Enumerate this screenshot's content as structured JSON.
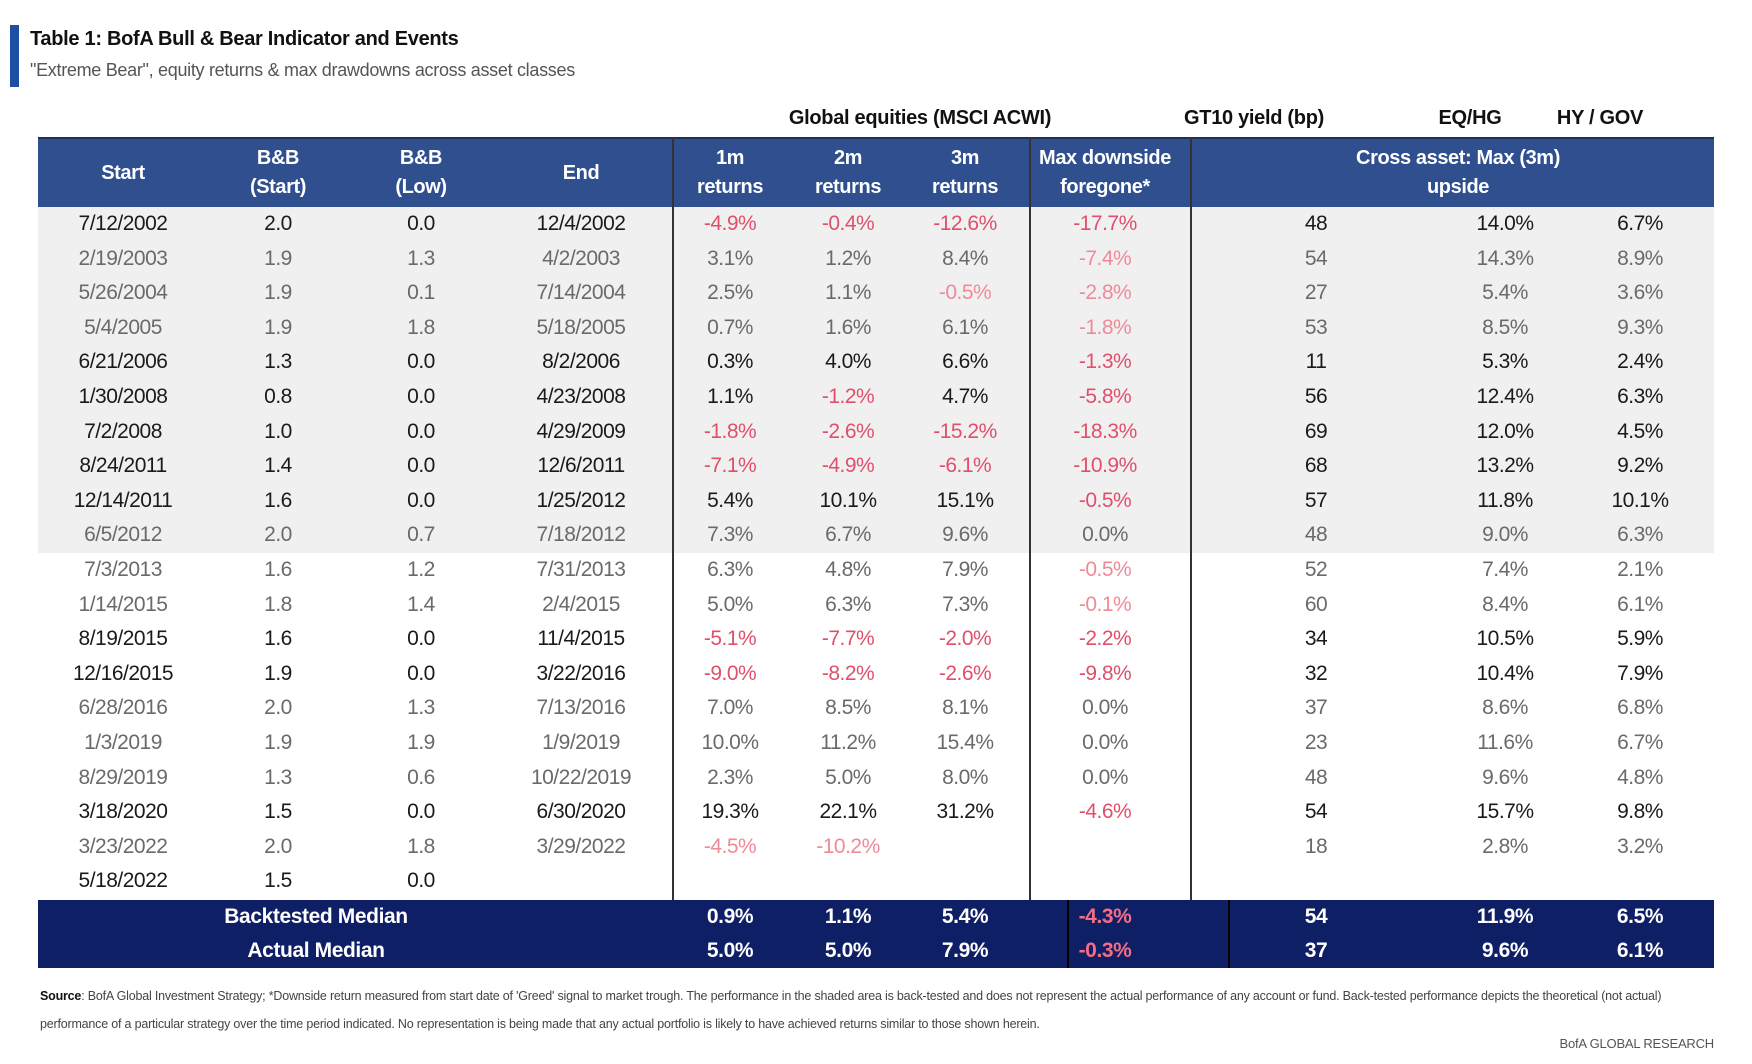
{
  "title": "Table 1: BofA Bull & Bear Indicator and Events",
  "subtitle": "\"Extreme Bear\", equity returns & max drawdowns across asset classes",
  "group_labels": {
    "global_equities": "Global equities (MSCI ACWI)",
    "gt10": "GT10 yield (bp)",
    "eqhg": "EQ/HG",
    "hygov": "HY / GOV"
  },
  "columns": {
    "start": "Start",
    "bb_start": "B&B\n(Start)",
    "bb_low": "B&B\n(Low)",
    "end": "End",
    "r1m": "1m\nreturns",
    "r2m": "2m\nreturns",
    "r3m": "3m\nreturns",
    "maxdown": "Max downside\nforegone*",
    "cross": "Cross asset: Max (3m) upside"
  },
  "colors": {
    "header_bg": "#2f4f8f",
    "footer_bg": "#0f1f66",
    "negative": "#e0506a",
    "shaded_area": "#f0f0f0",
    "accent": "#1d4fa3"
  },
  "rows": [
    {
      "start": "7/12/2002",
      "bb_start": "2.0",
      "bb_low": "0.0",
      "end": "12/4/2002",
      "r1m": "-4.9%",
      "r2m": "-0.4%",
      "r3m": "-12.6%",
      "maxdown": "-17.7%",
      "gt10": "48",
      "eqhg": "14.0%",
      "hygov": "6.7%",
      "style": "bold"
    },
    {
      "start": "2/19/2003",
      "bb_start": "1.9",
      "bb_low": "1.3",
      "end": "4/2/2003",
      "r1m": "3.1%",
      "r2m": "1.2%",
      "r3m": "8.4%",
      "maxdown": "-7.4%",
      "gt10": "54",
      "eqhg": "14.3%",
      "hygov": "8.9%",
      "style": "light"
    },
    {
      "start": "5/26/2004",
      "bb_start": "1.9",
      "bb_low": "0.1",
      "end": "7/14/2004",
      "r1m": "2.5%",
      "r2m": "1.1%",
      "r3m": "-0.5%",
      "maxdown": "-2.8%",
      "gt10": "27",
      "eqhg": "5.4%",
      "hygov": "3.6%",
      "style": "light"
    },
    {
      "start": "5/4/2005",
      "bb_start": "1.9",
      "bb_low": "1.8",
      "end": "5/18/2005",
      "r1m": "0.7%",
      "r2m": "1.6%",
      "r3m": "6.1%",
      "maxdown": "-1.8%",
      "gt10": "53",
      "eqhg": "8.5%",
      "hygov": "9.3%",
      "style": "light"
    },
    {
      "start": "6/21/2006",
      "bb_start": "1.3",
      "bb_low": "0.0",
      "end": "8/2/2006",
      "r1m": "0.3%",
      "r2m": "4.0%",
      "r3m": "6.6%",
      "maxdown": "-1.3%",
      "gt10": "11",
      "eqhg": "5.3%",
      "hygov": "2.4%",
      "style": "bold"
    },
    {
      "start": "1/30/2008",
      "bb_start": "0.8",
      "bb_low": "0.0",
      "end": "4/23/2008",
      "r1m": "1.1%",
      "r2m": "-1.2%",
      "r3m": "4.7%",
      "maxdown": "-5.8%",
      "gt10": "56",
      "eqhg": "12.4%",
      "hygov": "6.3%",
      "style": "bold"
    },
    {
      "start": "7/2/2008",
      "bb_start": "1.0",
      "bb_low": "0.0",
      "end": "4/29/2009",
      "r1m": "-1.8%",
      "r2m": "-2.6%",
      "r3m": "-15.2%",
      "maxdown": "-18.3%",
      "gt10": "69",
      "eqhg": "12.0%",
      "hygov": "4.5%",
      "style": "bold"
    },
    {
      "start": "8/24/2011",
      "bb_start": "1.4",
      "bb_low": "0.0",
      "end": "12/6/2011",
      "r1m": "-7.1%",
      "r2m": "-4.9%",
      "r3m": "-6.1%",
      "maxdown": "-10.9%",
      "gt10": "68",
      "eqhg": "13.2%",
      "hygov": "9.2%",
      "style": "bold"
    },
    {
      "start": "12/14/2011",
      "bb_start": "1.6",
      "bb_low": "0.0",
      "end": "1/25/2012",
      "r1m": "5.4%",
      "r2m": "10.1%",
      "r3m": "15.1%",
      "maxdown": "-0.5%",
      "gt10": "57",
      "eqhg": "11.8%",
      "hygov": "10.1%",
      "style": "bold"
    },
    {
      "start": "6/5/2012",
      "bb_start": "2.0",
      "bb_low": "0.7",
      "end": "7/18/2012",
      "r1m": "7.3%",
      "r2m": "6.7%",
      "r3m": "9.6%",
      "maxdown": "0.0%",
      "gt10": "48",
      "eqhg": "9.0%",
      "hygov": "6.3%",
      "style": "light"
    },
    {
      "start": "7/3/2013",
      "bb_start": "1.6",
      "bb_low": "1.2",
      "end": "7/31/2013",
      "r1m": "6.3%",
      "r2m": "4.8%",
      "r3m": "7.9%",
      "maxdown": "-0.5%",
      "gt10": "52",
      "eqhg": "7.4%",
      "hygov": "2.1%",
      "style": "light"
    },
    {
      "start": "1/14/2015",
      "bb_start": "1.8",
      "bb_low": "1.4",
      "end": "2/4/2015",
      "r1m": "5.0%",
      "r2m": "6.3%",
      "r3m": "7.3%",
      "maxdown": "-0.1%",
      "gt10": "60",
      "eqhg": "8.4%",
      "hygov": "6.1%",
      "style": "light"
    },
    {
      "start": "8/19/2015",
      "bb_start": "1.6",
      "bb_low": "0.0",
      "end": "11/4/2015",
      "r1m": "-5.1%",
      "r2m": "-7.7%",
      "r3m": "-2.0%",
      "maxdown": "-2.2%",
      "gt10": "34",
      "eqhg": "10.5%",
      "hygov": "5.9%",
      "style": "bold"
    },
    {
      "start": "12/16/2015",
      "bb_start": "1.9",
      "bb_low": "0.0",
      "end": "3/22/2016",
      "r1m": "-9.0%",
      "r2m": "-8.2%",
      "r3m": "-2.6%",
      "maxdown": "-9.8%",
      "gt10": "32",
      "eqhg": "10.4%",
      "hygov": "7.9%",
      "style": "bold"
    },
    {
      "start": "6/28/2016",
      "bb_start": "2.0",
      "bb_low": "1.3",
      "end": "7/13/2016",
      "r1m": "7.0%",
      "r2m": "8.5%",
      "r3m": "8.1%",
      "maxdown": "0.0%",
      "gt10": "37",
      "eqhg": "8.6%",
      "hygov": "6.8%",
      "style": "light"
    },
    {
      "start": "1/3/2019",
      "bb_start": "1.9",
      "bb_low": "1.9",
      "end": "1/9/2019",
      "r1m": "10.0%",
      "r2m": "11.2%",
      "r3m": "15.4%",
      "maxdown": "0.0%",
      "gt10": "23",
      "eqhg": "11.6%",
      "hygov": "6.7%",
      "style": "light"
    },
    {
      "start": "8/29/2019",
      "bb_start": "1.3",
      "bb_low": "0.6",
      "end": "10/22/2019",
      "r1m": "2.3%",
      "r2m": "5.0%",
      "r3m": "8.0%",
      "maxdown": "0.0%",
      "gt10": "48",
      "eqhg": "9.6%",
      "hygov": "4.8%",
      "style": "light"
    },
    {
      "start": "3/18/2020",
      "bb_start": "1.5",
      "bb_low": "0.0",
      "end": "6/30/2020",
      "r1m": "19.3%",
      "r2m": "22.1%",
      "r3m": "31.2%",
      "maxdown": "-4.6%",
      "gt10": "54",
      "eqhg": "15.7%",
      "hygov": "9.8%",
      "style": "bold"
    },
    {
      "start": "3/23/2022",
      "bb_start": "2.0",
      "bb_low": "1.8",
      "end": "3/29/2022",
      "r1m": "-4.5%",
      "r2m": "-10.2%",
      "r3m": "",
      "maxdown": "",
      "gt10": "18",
      "eqhg": "2.8%",
      "hygov": "3.2%",
      "style": "light"
    },
    {
      "start": "5/18/2022",
      "bb_start": "1.5",
      "bb_low": "0.0",
      "end": "",
      "r1m": "",
      "r2m": "",
      "r3m": "",
      "maxdown": "",
      "gt10": "",
      "eqhg": "",
      "hygov": "",
      "style": "bold"
    }
  ],
  "footer_rows": [
    {
      "label": "Backtested Median",
      "r1m": "0.9%",
      "r2m": "1.1%",
      "r3m": "5.4%",
      "maxdown": "-4.3%",
      "gt10": "54",
      "eqhg": "11.9%",
      "hygov": "6.5%"
    },
    {
      "label": "Actual Median",
      "r1m": "5.0%",
      "r2m": "5.0%",
      "r3m": "7.9%",
      "maxdown": "-0.3%",
      "gt10": "37",
      "eqhg": "9.6%",
      "hygov": "6.1%"
    }
  ],
  "source": {
    "label": "Source",
    "text": ": BofA Global Investment Strategy; *Downside return measured from start date of 'Greed' signal to market trough. The performance in the shaded area is back-tested and does not represent the actual performance of any account or fund. Back-tested performance depicts the theoretical (not actual) performance of a particular strategy over the time period indicated. No representation is being made that any actual portfolio is likely to have achieved returns similar to those shown herein."
  },
  "brand": "BofA GLOBAL RESEARCH"
}
